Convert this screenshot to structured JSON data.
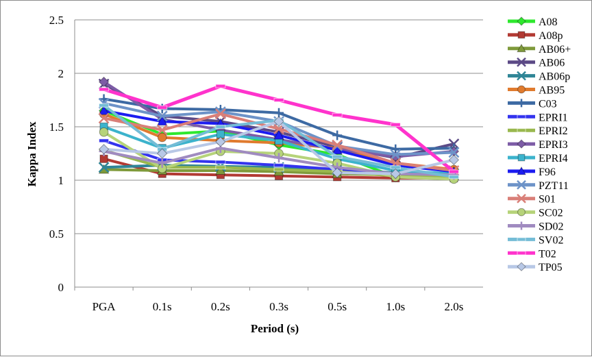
{
  "chart_data": {
    "type": "line",
    "title": "",
    "xlabel": "Period (s)",
    "ylabel": "Kappa Index",
    "categories": [
      "PGA",
      "0.1s",
      "0.2s",
      "0.3s",
      "0.5s",
      "1.0s",
      "2.0s"
    ],
    "ylim": [
      0,
      2.5
    ],
    "yticks": [
      "0",
      "0.5",
      "1",
      "1.5",
      "2",
      "2.5"
    ],
    "grid": "horizontal",
    "legend_position": "right",
    "series": [
      {
        "name": "A08",
        "color": "#2ee82e",
        "marker": "diamond",
        "values": [
          1.65,
          1.43,
          1.46,
          1.33,
          1.24,
          1.03,
          1.02
        ]
      },
      {
        "name": "A08p",
        "color": "#b23a33",
        "marker": "square",
        "values": [
          1.2,
          1.06,
          1.05,
          1.04,
          1.03,
          1.02,
          1.02
        ]
      },
      {
        "name": "AB06+",
        "color": "#7f9a3b",
        "marker": "triangle",
        "values": [
          1.1,
          1.09,
          1.09,
          1.08,
          1.06,
          1.05,
          1.04
        ]
      },
      {
        "name": "AB06",
        "color": "#5c4a86",
        "marker": "x",
        "values": [
          1.9,
          1.6,
          1.55,
          1.45,
          1.31,
          1.21,
          1.34
        ]
      },
      {
        "name": "AB06p",
        "color": "#2f8596",
        "marker": "x",
        "values": [
          1.12,
          1.14,
          1.13,
          1.12,
          1.1,
          1.07,
          1.06
        ]
      },
      {
        "name": "AB95",
        "color": "#e07b2e",
        "marker": "circle",
        "values": [
          1.62,
          1.4,
          1.37,
          1.35,
          1.3,
          1.16,
          1.1
        ]
      },
      {
        "name": "C03",
        "color": "#3d6aa3",
        "marker": "plus",
        "values": [
          1.76,
          1.67,
          1.66,
          1.63,
          1.42,
          1.29,
          1.3
        ]
      },
      {
        "name": "EPRI1",
        "color": "#3333ee",
        "marker": "dash",
        "values": [
          1.37,
          1.19,
          1.17,
          1.14,
          1.1,
          1.05,
          1.04
        ]
      },
      {
        "name": "EPRI2",
        "color": "#99b84e",
        "marker": "dash",
        "values": [
          1.28,
          1.12,
          1.12,
          1.1,
          1.08,
          1.04,
          1.03
        ]
      },
      {
        "name": "EPRI3",
        "color": "#7d5ca6",
        "marker": "diamond",
        "values": [
          1.92,
          1.57,
          1.47,
          1.38,
          1.29,
          1.22,
          1.27
        ]
      },
      {
        "name": "EPRI4",
        "color": "#3cb3cc",
        "marker": "square",
        "values": [
          1.5,
          1.3,
          1.43,
          1.37,
          1.2,
          1.09,
          1.06
        ]
      },
      {
        "name": "F96",
        "color": "#1c1cf0",
        "marker": "triangle",
        "values": [
          1.65,
          1.55,
          1.53,
          1.42,
          1.28,
          1.14,
          1.08
        ]
      },
      {
        "name": "PZT11",
        "color": "#6d93c8",
        "marker": "x",
        "values": [
          1.72,
          1.6,
          1.64,
          1.55,
          1.32,
          1.24,
          1.26
        ]
      },
      {
        "name": "S01",
        "color": "#d97f78",
        "marker": "x",
        "values": [
          1.58,
          1.47,
          1.62,
          1.48,
          1.33,
          1.16,
          1.09
        ]
      },
      {
        "name": "SC02",
        "color": "#b6d37a",
        "marker": "circle",
        "values": [
          1.45,
          1.11,
          1.27,
          1.25,
          1.16,
          1.03,
          1.01
        ]
      },
      {
        "name": "SD02",
        "color": "#a08bc0",
        "marker": "plus",
        "values": [
          1.27,
          1.16,
          1.3,
          1.21,
          1.12,
          1.06,
          1.05
        ]
      },
      {
        "name": "SV02",
        "color": "#74bcd6",
        "marker": "dash",
        "values": [
          1.7,
          1.29,
          1.5,
          1.56,
          1.22,
          1.12,
          1.03
        ]
      },
      {
        "name": "T02",
        "color": "#ff33cc",
        "marker": "dash",
        "values": [
          1.85,
          1.68,
          1.88,
          1.75,
          1.61,
          1.52,
          1.08
        ]
      },
      {
        "name": "TP05",
        "color": "#b8c8e6",
        "marker": "diamond",
        "values": [
          1.29,
          1.25,
          1.36,
          1.55,
          1.07,
          1.06,
          1.19
        ]
      }
    ]
  }
}
